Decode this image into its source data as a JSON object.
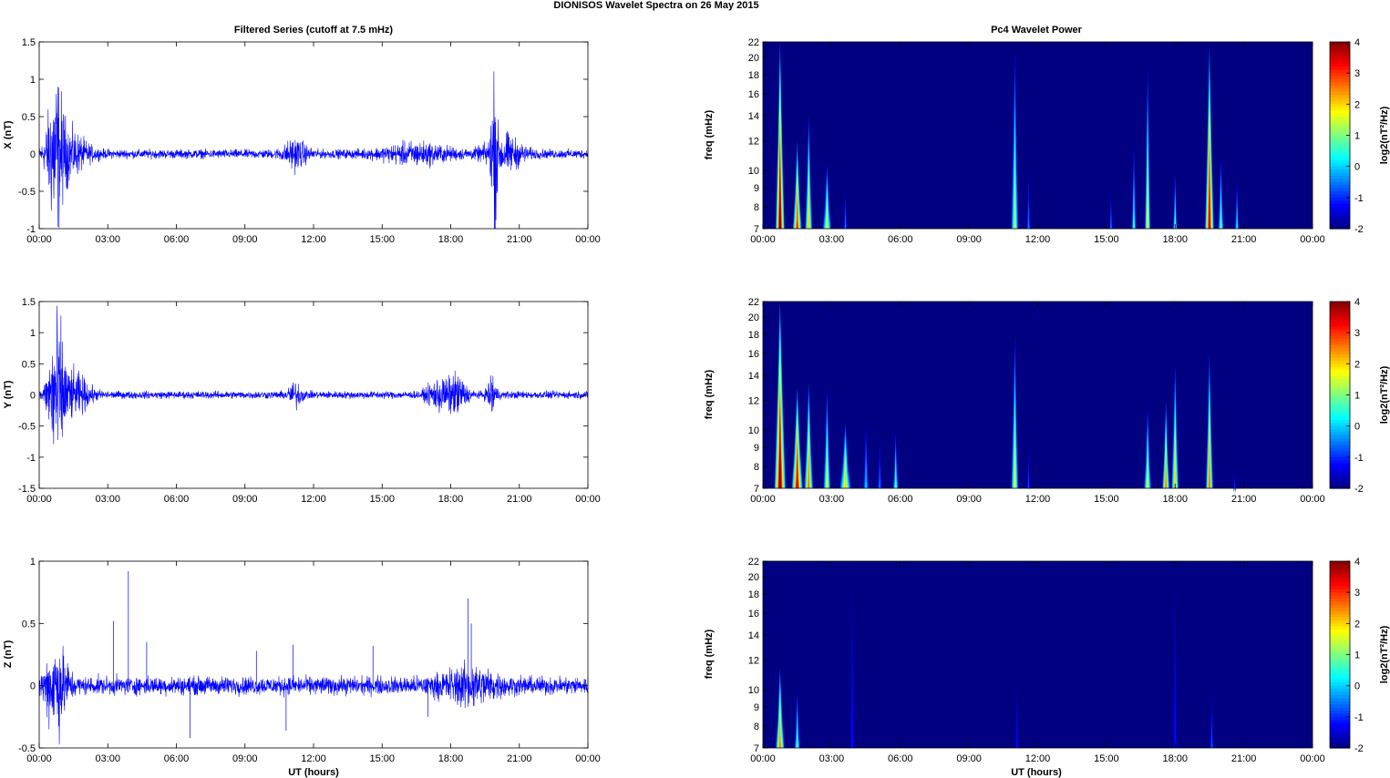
{
  "figure": {
    "suptitle": "DIONISOS Wavelet Spectra on 26 May      2015",
    "left_title": "Filtered Series (cutoff at 7.5 mHz)",
    "right_title": "Pc4 Wavelet Power",
    "xlabel": "UT (hours)",
    "time_ticks": [
      "00:00",
      "03:00",
      "06:00",
      "09:00",
      "12:00",
      "15:00",
      "18:00",
      "21:00",
      "00:00"
    ]
  },
  "chart_data": [
    {
      "id": "X",
      "type": "line",
      "title": "Filtered Series (cutoff at 7.5 mHz)",
      "xlabel": "",
      "ylabel": "X (nT)",
      "xlim": [
        0,
        24
      ],
      "ylim": [
        -1,
        1.5
      ],
      "y_ticks": [
        "1.5",
        "1",
        "0.5",
        "0",
        "-0.5",
        "-1"
      ],
      "color": "#0000ff",
      "noise_amplitude": 0.05,
      "events": [
        {
          "t": 0.7,
          "amp": 0.95,
          "width": 0.35
        },
        {
          "t": 1.3,
          "amp": 0.3,
          "width": 0.8
        },
        {
          "t": 11.2,
          "amp": 0.18,
          "width": 0.5
        },
        {
          "t": 16.5,
          "amp": 0.12,
          "width": 1.5
        },
        {
          "t": 19.9,
          "amp": 1.2,
          "width": 0.12
        },
        {
          "t": 20.3,
          "amp": 0.25,
          "width": 0.8
        }
      ]
    },
    {
      "id": "Y",
      "type": "line",
      "title": "",
      "xlabel": "",
      "ylabel": "Y (nT)",
      "xlim": [
        0,
        24
      ],
      "ylim": [
        -1.5,
        1.5
      ],
      "y_ticks": [
        "1.5",
        "1",
        "0.5",
        "0",
        "-0.5",
        "-1",
        "-1.5"
      ],
      "color": "#0000ff",
      "noise_amplitude": 0.05,
      "events": [
        {
          "t": 0.75,
          "amp": 1.25,
          "width": 0.35
        },
        {
          "t": 1.5,
          "amp": 0.35,
          "width": 0.7
        },
        {
          "t": 11.2,
          "amp": 0.18,
          "width": 0.3
        },
        {
          "t": 17.5,
          "amp": 0.25,
          "width": 0.5
        },
        {
          "t": 18.3,
          "amp": 0.3,
          "width": 0.4
        },
        {
          "t": 19.8,
          "amp": 0.35,
          "width": 0.2
        }
      ]
    },
    {
      "id": "Z",
      "type": "line",
      "title": "",
      "xlabel": "UT (hours)",
      "ylabel": "Z (nT)",
      "xlim": [
        0,
        24
      ],
      "ylim": [
        -0.5,
        1
      ],
      "y_ticks": [
        "1",
        "0.5",
        "0",
        "-0.5"
      ],
      "color": "#0000ff",
      "noise_amplitude": 0.06,
      "events": [
        {
          "t": 0.75,
          "amp": 0.35,
          "width": 0.5
        },
        {
          "t": 18.8,
          "amp": 0.12,
          "width": 1.2
        }
      ],
      "spikes": [
        {
          "t": 3.25,
          "v": 0.52
        },
        {
          "t": 3.9,
          "v": 0.92
        },
        {
          "t": 4.7,
          "v": 0.35
        },
        {
          "t": 6.6,
          "v": -0.42
        },
        {
          "t": 9.5,
          "v": 0.28
        },
        {
          "t": 11.1,
          "v": 0.33
        },
        {
          "t": 10.8,
          "v": -0.36
        },
        {
          "t": 14.6,
          "v": 0.32
        },
        {
          "t": 17.0,
          "v": -0.25
        },
        {
          "t": 18.75,
          "v": 0.7
        },
        {
          "t": 18.9,
          "v": 0.5
        }
      ]
    },
    {
      "id": "PX",
      "type": "heatmap",
      "title": "Pc4 Wavelet Power",
      "xlabel": "",
      "ylabel": "freq (mHz)",
      "colorbar_label": "log2(nT²/Hz)",
      "xlim": [
        0,
        24
      ],
      "ylim": [
        7,
        22
      ],
      "clim": [
        -2,
        4
      ],
      "freq_ticks": [
        7,
        8,
        9,
        10,
        12,
        14,
        16,
        18,
        20,
        22
      ],
      "colorbar_ticks": [
        4,
        3,
        2,
        1,
        0,
        -1,
        -2
      ],
      "background": -2,
      "blobs": [
        {
          "t": 0.75,
          "peak": 4,
          "top": 22,
          "w": 0.12
        },
        {
          "t": 1.5,
          "peak": 3,
          "top": 12,
          "w": 0.12
        },
        {
          "t": 2.0,
          "peak": 2,
          "top": 14,
          "w": 0.1
        },
        {
          "t": 2.8,
          "peak": 1.5,
          "top": 10.5,
          "w": 0.12
        },
        {
          "t": 3.6,
          "peak": -0.5,
          "top": 9,
          "w": 0.05
        },
        {
          "t": 11.0,
          "peak": 1.2,
          "top": 21,
          "w": 0.1
        },
        {
          "t": 11.6,
          "peak": -0.5,
          "top": 10,
          "w": 0.05
        },
        {
          "t": 15.2,
          "peak": -0.5,
          "top": 9,
          "w": 0.05
        },
        {
          "t": 16.2,
          "peak": 0.5,
          "top": 12,
          "w": 0.06
        },
        {
          "t": 16.8,
          "peak": 1.5,
          "top": 19,
          "w": 0.08
        },
        {
          "t": 18.0,
          "peak": 0.8,
          "top": 10,
          "w": 0.06
        },
        {
          "t": 19.5,
          "peak": 3.5,
          "top": 21.5,
          "w": 0.12
        },
        {
          "t": 20.0,
          "peak": 0.8,
          "top": 11,
          "w": 0.08
        },
        {
          "t": 20.7,
          "peak": 0.3,
          "top": 9.5,
          "w": 0.06
        }
      ]
    },
    {
      "id": "PY",
      "type": "heatmap",
      "title": "",
      "xlabel": "",
      "ylabel": "freq (mHz)",
      "colorbar_label": "log2(nT²/Hz)",
      "xlim": [
        0,
        24
      ],
      "ylim": [
        7,
        22
      ],
      "clim": [
        -2,
        4
      ],
      "freq_ticks": [
        7,
        8,
        9,
        10,
        12,
        14,
        16,
        18,
        20,
        22
      ],
      "colorbar_ticks": [
        4,
        3,
        2,
        1,
        0,
        -1,
        -2
      ],
      "background": -2,
      "blobs": [
        {
          "t": 0.75,
          "peak": 4,
          "top": 22,
          "w": 0.15
        },
        {
          "t": 1.5,
          "peak": 3.5,
          "top": 13,
          "w": 0.15
        },
        {
          "t": 2.0,
          "peak": 2.5,
          "top": 13.5,
          "w": 0.12
        },
        {
          "t": 2.8,
          "peak": 1.5,
          "top": 13,
          "w": 0.1
        },
        {
          "t": 3.6,
          "peak": 2,
          "top": 10.5,
          "w": 0.15
        },
        {
          "t": 4.5,
          "peak": 0,
          "top": 10.5,
          "w": 0.08
        },
        {
          "t": 5.1,
          "peak": -0.5,
          "top": 9.5,
          "w": 0.06
        },
        {
          "t": 5.8,
          "peak": 0.8,
          "top": 10,
          "w": 0.08
        },
        {
          "t": 11.0,
          "peak": 1.5,
          "top": 18,
          "w": 0.1
        },
        {
          "t": 11.6,
          "peak": -0.8,
          "top": 9,
          "w": 0.05
        },
        {
          "t": 16.8,
          "peak": 1.5,
          "top": 11.5,
          "w": 0.1
        },
        {
          "t": 17.6,
          "peak": 2.5,
          "top": 12,
          "w": 0.1
        },
        {
          "t": 18.0,
          "peak": 2,
          "top": 15,
          "w": 0.1
        },
        {
          "t": 19.5,
          "peak": 2.5,
          "top": 16,
          "w": 0.1
        },
        {
          "t": 20.6,
          "peak": -1,
          "top": 8,
          "w": 0.04
        }
      ]
    },
    {
      "id": "PZ",
      "type": "heatmap",
      "title": "",
      "xlabel": "UT (hours)",
      "ylabel": "freq (mHz)",
      "colorbar_label": "log2(nT²/Hz)",
      "xlim": [
        0,
        24
      ],
      "ylim": [
        7,
        22
      ],
      "clim": [
        -2,
        4
      ],
      "freq_ticks": [
        7,
        8,
        9,
        10,
        12,
        14,
        16,
        18,
        20,
        22
      ],
      "colorbar_ticks": [
        4,
        3,
        2,
        1,
        0,
        -1,
        -2
      ],
      "background": -2,
      "blobs": [
        {
          "t": 0.75,
          "peak": 2.5,
          "top": 11.5,
          "w": 0.12
        },
        {
          "t": 1.5,
          "peak": 0.8,
          "top": 10,
          "w": 0.08
        },
        {
          "t": 3.9,
          "peak": -1.2,
          "top": 22,
          "w": 0.05
        },
        {
          "t": 11.1,
          "peak": -1.2,
          "top": 11,
          "w": 0.04
        },
        {
          "t": 18.0,
          "peak": -1.2,
          "top": 22,
          "w": 0.05
        },
        {
          "t": 19.6,
          "peak": -0.8,
          "top": 10,
          "w": 0.05
        }
      ]
    }
  ]
}
